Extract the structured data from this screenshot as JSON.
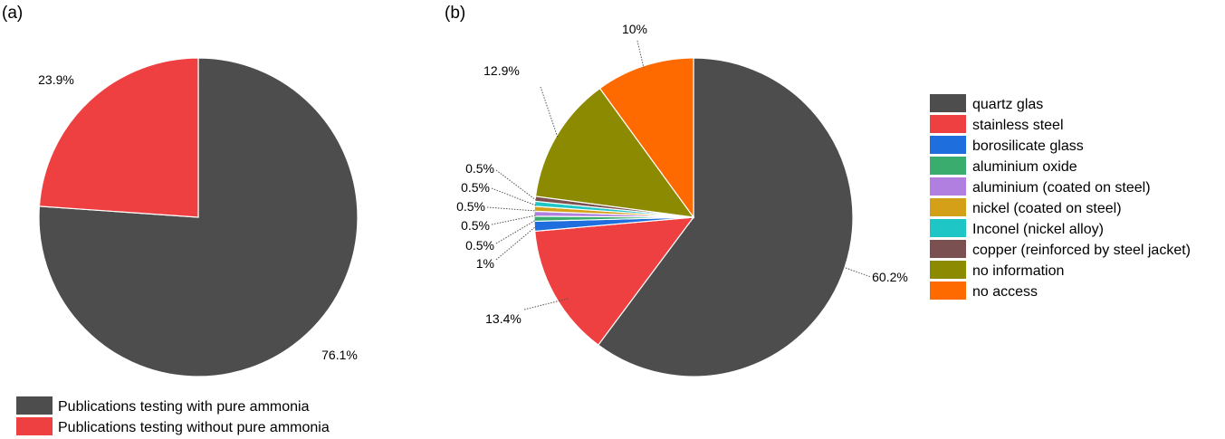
{
  "chart_data": [
    {
      "panel": "(a)",
      "type": "pie",
      "title": "",
      "slices": [
        {
          "label": "Publications testing with pure ammonia",
          "value": 76.1,
          "display": "76.1%",
          "color": "#4d4d4d"
        },
        {
          "label": "Publications testing without pure ammonia",
          "value": 23.9,
          "display": "23.9%",
          "color": "#ef4041"
        }
      ],
      "start_angle_deg": 0,
      "direction": "clockwise",
      "legend_position": "bottom-left"
    },
    {
      "panel": "(b)",
      "type": "pie",
      "title": "",
      "slices": [
        {
          "label": "quartz glas",
          "value": 60.2,
          "display": "60.2%",
          "color": "#4d4d4d"
        },
        {
          "label": "stainless steel",
          "value": 13.4,
          "display": "13.4%",
          "color": "#ef4041"
        },
        {
          "label": "borosilicate glass",
          "value": 1.0,
          "display": "1%",
          "color": "#1e6fdd"
        },
        {
          "label": "aluminium oxide",
          "value": 0.5,
          "display": "0.5%",
          "color": "#3aad6e"
        },
        {
          "label": "aluminium (coated on steel)",
          "value": 0.5,
          "display": "0.5%",
          "color": "#b07fe0"
        },
        {
          "label": "nickel (coated on steel)",
          "value": 0.5,
          "display": "0.5%",
          "color": "#d4a017"
        },
        {
          "label": "Inconel (nickel alloy)",
          "value": 0.5,
          "display": "0.5%",
          "color": "#1fc6c6"
        },
        {
          "label": "copper (reinforced by steel jacket)",
          "value": 0.5,
          "display": "0.5%",
          "color": "#7a5050"
        },
        {
          "label": "no information",
          "value": 12.9,
          "display": "12.9%",
          "color": "#8c8a00"
        },
        {
          "label": "no access",
          "value": 10.0,
          "display": "10%",
          "color": "#ff6a00"
        }
      ],
      "start_angle_deg": 0,
      "direction": "clockwise",
      "legend_position": "right"
    }
  ]
}
